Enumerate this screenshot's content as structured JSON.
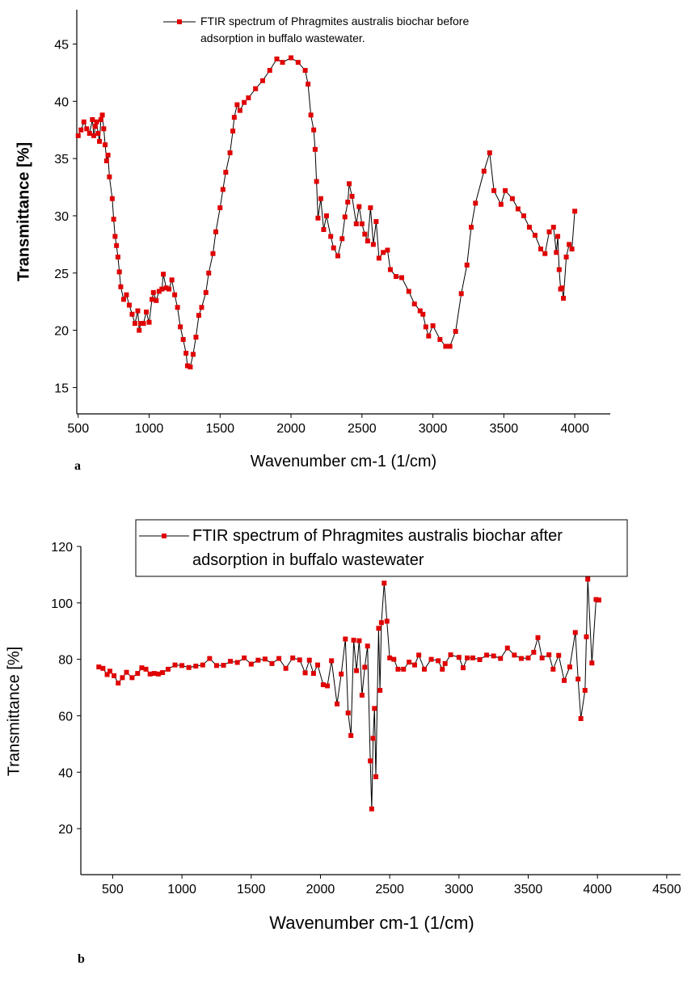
{
  "chart_data": [
    {
      "type": "line",
      "panel_label": "a",
      "xlabel": "Wavenumber cm-1 (1/cm)",
      "ylabel": "Transmittance [%]",
      "xlim": [
        490,
        4250
      ],
      "ylim": [
        12.7,
        48
      ],
      "xticks": [
        500,
        1000,
        1500,
        2000,
        2500,
        3000,
        3500,
        4000
      ],
      "yticks": [
        15,
        20,
        25,
        30,
        35,
        40,
        45
      ],
      "line_color": "#000000",
      "legend_box": false,
      "x": [
        500,
        520,
        540,
        560,
        580,
        600,
        610,
        620,
        630,
        640,
        650,
        660,
        670,
        680,
        690,
        700,
        710,
        720,
        740,
        750,
        760,
        770,
        780,
        790,
        800,
        820,
        840,
        860,
        880,
        900,
        920,
        930,
        940,
        960,
        980,
        1000,
        1020,
        1030,
        1050,
        1070,
        1090,
        1100,
        1120,
        1140,
        1160,
        1180,
        1200,
        1220,
        1240,
        1260,
        1270,
        1290,
        1310,
        1330,
        1350,
        1370,
        1400,
        1420,
        1450,
        1470,
        1500,
        1520,
        1540,
        1570,
        1590,
        1600,
        1620,
        1640,
        1670,
        1700,
        1750,
        1800,
        1850,
        1900,
        1940,
        2000,
        2050,
        2100,
        2120,
        2140,
        2160,
        2170,
        2180,
        2190,
        2210,
        2230,
        2250,
        2280,
        2300,
        2330,
        2360,
        2380,
        2400,
        2410,
        2430,
        2460,
        2480,
        2500,
        2520,
        2540,
        2560,
        2580,
        2600,
        2620,
        2650,
        2680,
        2700,
        2740,
        2780,
        2830,
        2870,
        2910,
        2930,
        2950,
        2970,
        3000,
        3050,
        3090,
        3120,
        3160,
        3200,
        3240,
        3270,
        3300,
        3360,
        3400,
        3430,
        3480,
        3510,
        3560,
        3600,
        3640,
        3680,
        3720,
        3760,
        3790,
        3820,
        3850,
        3870,
        3880,
        3890,
        3900,
        3910,
        3920,
        3940,
        3960,
        3980,
        4000
      ],
      "series": [
        {
          "name": "FTIR spectrum of Phragmites australis biochar before adsorption in buffalo wastewater.",
          "color": "#e00000",
          "values": [
            37,
            37.5,
            38.2,
            37.6,
            37.2,
            38.4,
            37,
            37.8,
            38.2,
            37.2,
            36.5,
            38.4,
            38.8,
            37.6,
            36.2,
            34.8,
            35.3,
            33.4,
            31.5,
            29.7,
            28.2,
            27.4,
            26.4,
            25.1,
            23.8,
            22.7,
            23.1,
            22.2,
            21.4,
            20.6,
            21.7,
            20,
            20.6,
            20.6,
            21.6,
            20.7,
            22.7,
            23.3,
            22.6,
            23.4,
            23.6,
            24.9,
            23.7,
            23.6,
            24.4,
            23.1,
            22,
            20.3,
            19.2,
            18,
            16.9,
            16.8,
            17.9,
            19.4,
            21.3,
            22,
            23.3,
            25,
            26.7,
            28.6,
            30.7,
            32.3,
            33.8,
            35.5,
            37.4,
            38.6,
            39.7,
            39.2,
            39.9,
            40.3,
            41.1,
            41.8,
            42.7,
            43.7,
            43.4,
            43.8,
            43.4,
            42.7,
            41.5,
            38.8,
            37.5,
            35.8,
            33,
            29.8,
            31.5,
            28.8,
            30,
            28.2,
            27.2,
            26.5,
            28,
            29.9,
            31.2,
            32.8,
            31.7,
            29.3,
            30.8,
            29.3,
            28.4,
            27.8,
            30.7,
            27.5,
            29.5,
            26.3,
            26.8,
            27,
            25.3,
            24.7,
            24.6,
            23.4,
            22.3,
            21.7,
            21.4,
            20.3,
            19.5,
            20.4,
            19.2,
            18.6,
            18.6,
            19.9,
            23.2,
            25.7,
            29,
            31.1,
            33.9,
            35.5,
            32.2,
            31,
            32.2,
            31.5,
            30.6,
            30,
            29,
            28.3,
            27.1,
            26.7,
            28.6,
            29,
            26.8,
            28.2,
            25.3,
            23.6,
            23.7,
            22.8,
            26.4,
            27.5,
            27.1,
            30.4
          ]
        }
      ]
    },
    {
      "type": "line",
      "panel_label": "b",
      "xlabel": "Wavenumber cm-1 (1/cm)",
      "ylabel": "Transmittance [%]",
      "xlim": [
        270,
        4600
      ],
      "ylim": [
        3.7,
        120
      ],
      "xticks": [
        500,
        1000,
        1500,
        2000,
        2500,
        3000,
        3500,
        4000,
        4500
      ],
      "yticks": [
        20,
        40,
        60,
        80,
        100,
        120
      ],
      "line_color": "#000000",
      "legend_box": true,
      "x": [
        400,
        430,
        460,
        480,
        510,
        540,
        570,
        600,
        640,
        680,
        710,
        740,
        770,
        800,
        830,
        860,
        900,
        950,
        1000,
        1050,
        1100,
        1150,
        1200,
        1250,
        1300,
        1350,
        1400,
        1450,
        1500,
        1550,
        1600,
        1650,
        1700,
        1750,
        1800,
        1850,
        1890,
        1920,
        1950,
        1980,
        2020,
        2050,
        2080,
        2120,
        2150,
        2180,
        2200,
        2220,
        2240,
        2260,
        2280,
        2300,
        2320,
        2340,
        2360,
        2370,
        2380,
        2390,
        2400,
        2420,
        2430,
        2440,
        2460,
        2480,
        2500,
        2530,
        2560,
        2600,
        2640,
        2680,
        2710,
        2750,
        2800,
        2850,
        2880,
        2900,
        2940,
        3000,
        3030,
        3060,
        3100,
        3150,
        3200,
        3250,
        3300,
        3350,
        3400,
        3450,
        3500,
        3540,
        3570,
        3600,
        3650,
        3680,
        3720,
        3760,
        3800,
        3840,
        3860,
        3880,
        3910,
        3920,
        3930,
        3960,
        3990,
        4010
      ],
      "series": [
        {
          "name": "FTIR spectrum of Phragmites australis biochar after adsorption in buffalo wastewater",
          "color": "#e00000",
          "values": [
            77.3,
            76.8,
            74.6,
            75.8,
            74.2,
            71.6,
            73.5,
            75.4,
            73.5,
            75,
            77,
            76.5,
            74.8,
            75,
            74.8,
            75.3,
            76.5,
            78,
            77.8,
            77.1,
            77.6,
            78,
            80.3,
            77.8,
            77.9,
            79.3,
            78.9,
            80.5,
            78.3,
            79.7,
            80.1,
            78.5,
            80.3,
            76.8,
            80.5,
            79.8,
            75.2,
            79.7,
            75,
            78,
            71,
            70.6,
            79.5,
            64.2,
            74.8,
            87.2,
            61,
            53,
            86.8,
            76,
            86.6,
            67.3,
            77.2,
            84.7,
            44,
            27,
            52,
            62.6,
            38.4,
            91,
            69,
            93,
            107,
            93.5,
            80.5,
            80,
            76.5,
            76.5,
            79,
            78,
            81.5,
            76.5,
            80,
            79.5,
            76.5,
            78.5,
            81.6,
            80.7,
            77,
            80.5,
            80.5,
            79.9,
            81.5,
            81.2,
            80.3,
            84,
            81.5,
            80.3,
            80.5,
            82.5,
            87.7,
            80.5,
            81.6,
            76.5,
            81.4,
            72.5,
            77.3,
            89.5,
            73,
            59,
            69,
            88,
            108.4,
            78.7,
            101.2,
            101
          ]
        }
      ]
    }
  ]
}
